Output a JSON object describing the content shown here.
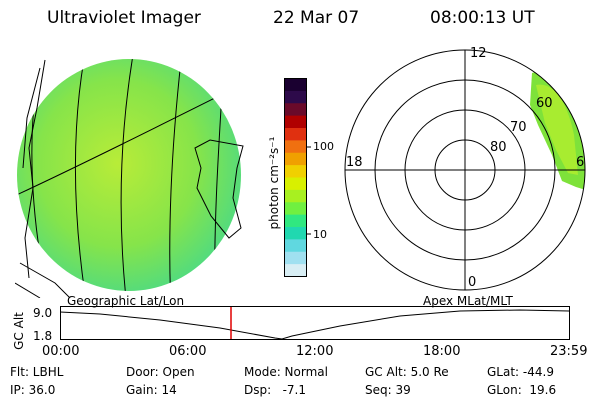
{
  "header": {
    "instrument": "Ultraviolet Imager",
    "date": "22 Mar 07",
    "time": "08:00:13 UT"
  },
  "colorbar": {
    "label": "photon cm⁻²s⁻¹",
    "ticks": [
      "100",
      "10"
    ],
    "colors": [
      "#1a0030",
      "#2d0a4a",
      "#6a0a2a",
      "#b00000",
      "#e03010",
      "#f07010",
      "#f0a000",
      "#f0d000",
      "#d8f000",
      "#a8f020",
      "#70f040",
      "#30e880",
      "#20d8b0",
      "#60d8e0",
      "#a0e0f0",
      "#d8eef4"
    ]
  },
  "polar": {
    "mlt_labels": [
      "12",
      "18",
      "6",
      "0"
    ],
    "mlat_labels": [
      "60",
      "70",
      "80"
    ]
  },
  "timeline": {
    "left_label": "Geographic Lat/Lon",
    "right_label": "Apex MLat/MLT",
    "axis_title": "GC Alt",
    "y_ticks": [
      "9.0",
      "1.8"
    ],
    "x_ticks": [
      "00:00",
      "06:00",
      "12:00",
      "18:00",
      "23:59"
    ]
  },
  "info": {
    "row1": [
      "Flt: LBHL",
      "Door: Open",
      "Mode: Normal",
      "GC Alt: 5.0 Re",
      "GLat: -44.9"
    ],
    "row2": [
      "IP: 36.0",
      "Gain: 14",
      "Dsp:   -7.1",
      "Seq: 39",
      "GLon:  19.6"
    ]
  }
}
